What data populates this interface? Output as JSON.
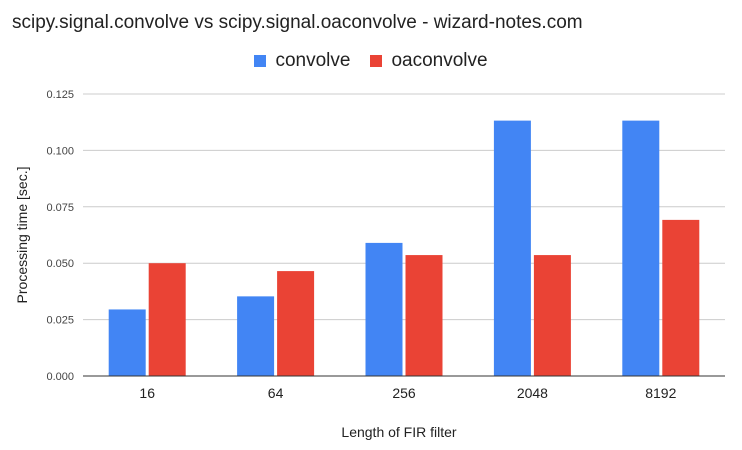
{
  "chart_data": {
    "type": "bar",
    "title": "scipy.signal.convolve vs scipy.signal.oaconvolve - wizard-notes.com",
    "xlabel": "Length of FIR filter",
    "ylabel": "Processing time [sec.]",
    "categories": [
      "16",
      "64",
      "256",
      "2048",
      "8192"
    ],
    "series": [
      {
        "name": "convolve",
        "color": "#4285f4",
        "values": [
          0.0295,
          0.0353,
          0.059,
          0.1132,
          0.1132
        ]
      },
      {
        "name": "oaconvolve",
        "color": "#ea4335",
        "values": [
          0.05,
          0.0465,
          0.0536,
          0.0536,
          0.0692
        ]
      }
    ],
    "ylim": [
      0,
      0.125
    ],
    "yticks": [
      "0.000",
      "0.025",
      "0.050",
      "0.075",
      "0.100",
      "0.125"
    ],
    "grid": true,
    "legend_position": "top"
  }
}
